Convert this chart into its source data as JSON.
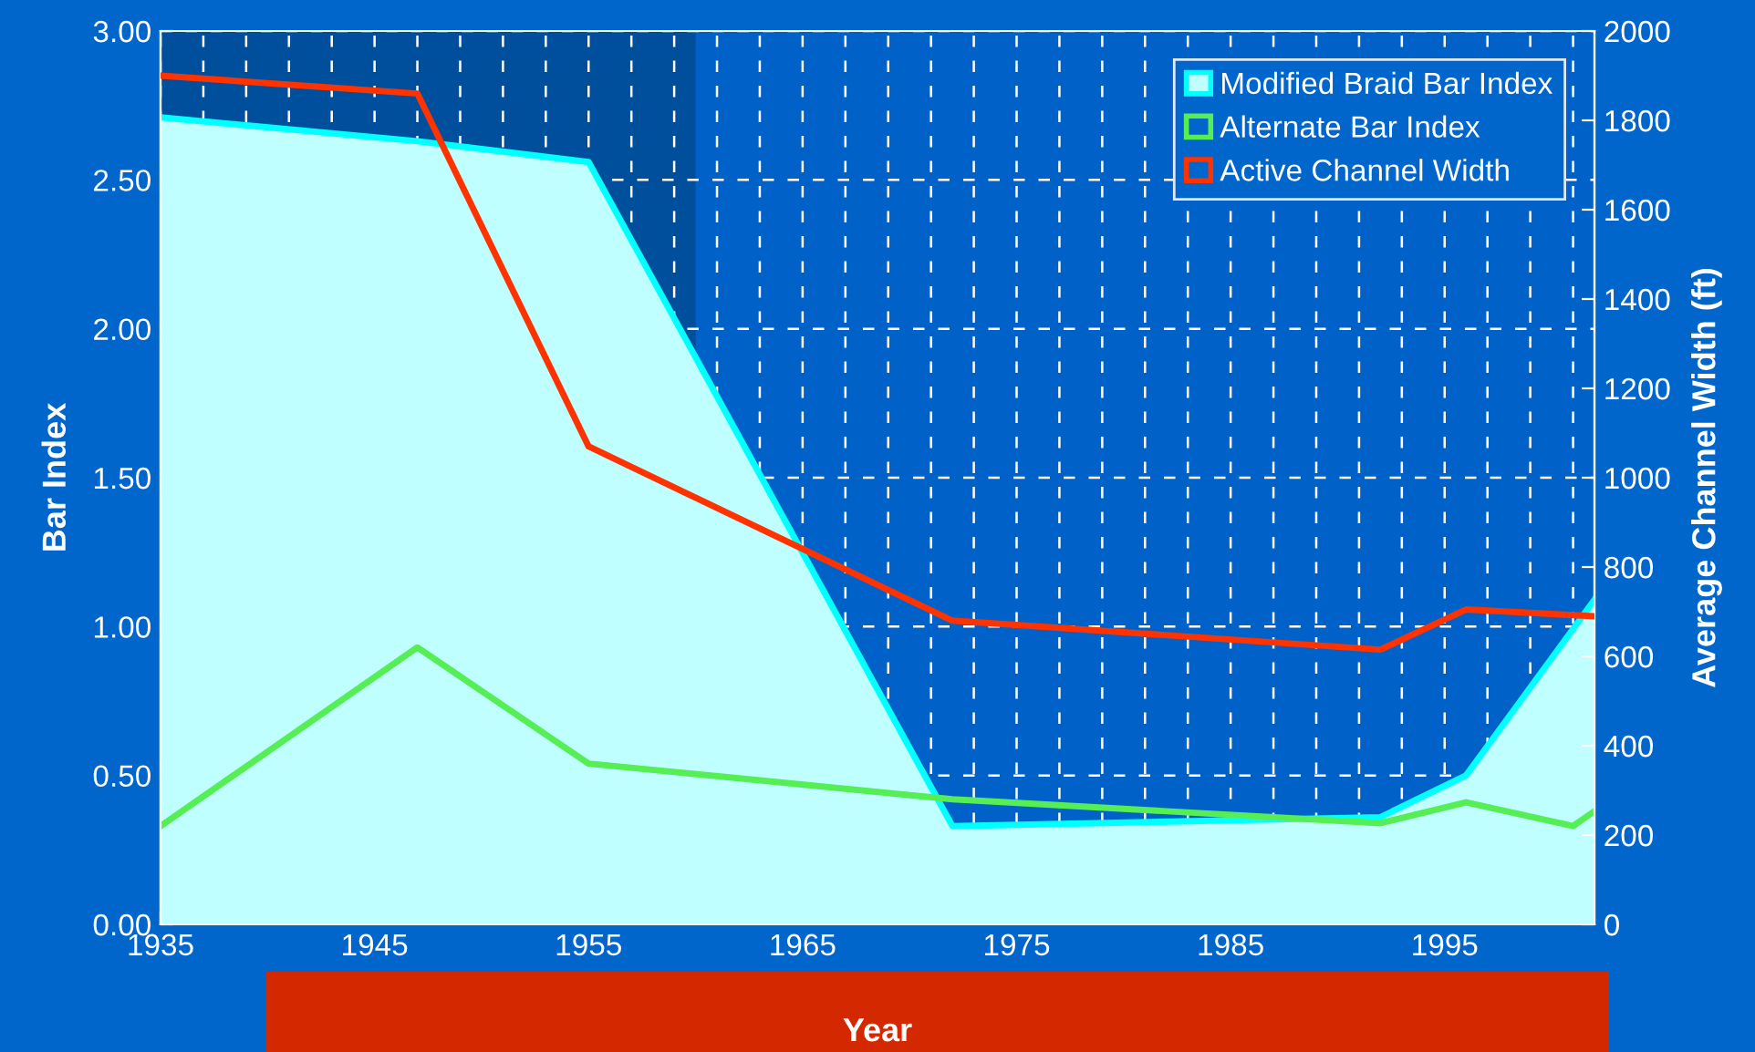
{
  "chart_data": {
    "type": "area",
    "xlabel": "Year",
    "ylabel": "Bar Index",
    "y2label": "Average Channel Width (ft)",
    "series": [
      {
        "name": "Modified Braid Bar Index",
        "color": "#00ffff",
        "x": [
          1935,
          1947,
          1955,
          1972,
          1992,
          1996,
          2002
        ],
        "values": [
          2.71,
          2.63,
          2.56,
          0.33,
          0.36,
          0.5,
          1.09
        ]
      },
      {
        "name": "Alternate Bar Index",
        "type": "line",
        "color": "#55ee55",
        "x": [
          1935,
          1947,
          1955,
          1972,
          1992,
          1996,
          2001,
          2002
        ],
        "values": [
          0.33,
          0.93,
          0.54,
          0.42,
          0.34,
          0.41,
          0.33,
          0.38
        ]
      },
      {
        "name": "Active Channel Width",
        "type": "line",
        "axis": "y2",
        "color": "#ff3300",
        "x": [
          1935,
          1947,
          1955,
          1972,
          1992,
          1996,
          2002
        ],
        "values": [
          1900,
          1860,
          1070,
          680,
          615,
          705,
          690
        ]
      }
    ],
    "xlim": [
      1935,
      2002
    ],
    "xticks": [
      1935,
      {
        "value": 1937,
        "label": null
      },
      {
        "value": 1939,
        "label": null
      },
      {
        "value": 1941,
        "label": null
      },
      {
        "value": 1943,
        "label": null
      },
      1945,
      {
        "value": 1947,
        "label": null
      },
      {
        "value": 1949,
        "label": null
      },
      {
        "value": 1951,
        "label": null
      },
      {
        "value": 1953,
        "label": null
      },
      1955,
      {
        "value": 1957,
        "label": null
      },
      {
        "value": 1959,
        "label": null
      },
      {
        "value": 1961,
        "label": null
      },
      {
        "value": 1963,
        "label": null
      },
      1965,
      {
        "value": 1967,
        "label": null
      },
      {
        "value": 1969,
        "label": null
      },
      {
        "value": 1971,
        "label": null
      },
      {
        "value": 1973,
        "label": null
      },
      1975,
      {
        "value": 1977,
        "label": null
      },
      {
        "value": 1979,
        "label": null
      },
      {
        "value": 1981,
        "label": null
      },
      {
        "value": 1983,
        "label": null
      },
      1985,
      {
        "value": 1987,
        "label": null
      },
      {
        "value": 1989,
        "label": null
      },
      {
        "value": 1991,
        "label": null
      },
      {
        "value": 1993,
        "label": null
      },
      1995,
      {
        "value": 1997,
        "label": null
      },
      {
        "value": 1999,
        "label": null
      },
      {
        "value": 2001,
        "label": null
      }
    ],
    "ylim": [
      0,
      3
    ],
    "yticks": [
      {
        "value": 0,
        "label": "0.00"
      },
      {
        "value": 0.5,
        "label": "0.50"
      },
      {
        "value": 1,
        "label": "1.00"
      },
      {
        "value": 1.5,
        "label": "1.50"
      },
      {
        "value": 2,
        "label": "2.00"
      },
      {
        "value": 2.5,
        "label": "2.50"
      },
      {
        "value": 3,
        "label": "3.00"
      }
    ],
    "y2lim": [
      0,
      2000
    ],
    "y2ticks": [
      0,
      200,
      400,
      600,
      800,
      1000,
      1200,
      1400,
      1600,
      1800,
      2000
    ],
    "bands": [
      {
        "axis": "x",
        "from": 1935,
        "to": 1960,
        "color": "#004f9c"
      }
    ],
    "grid": true,
    "legend": "top right",
    "line_style": "solid",
    "marker": "none"
  }
}
